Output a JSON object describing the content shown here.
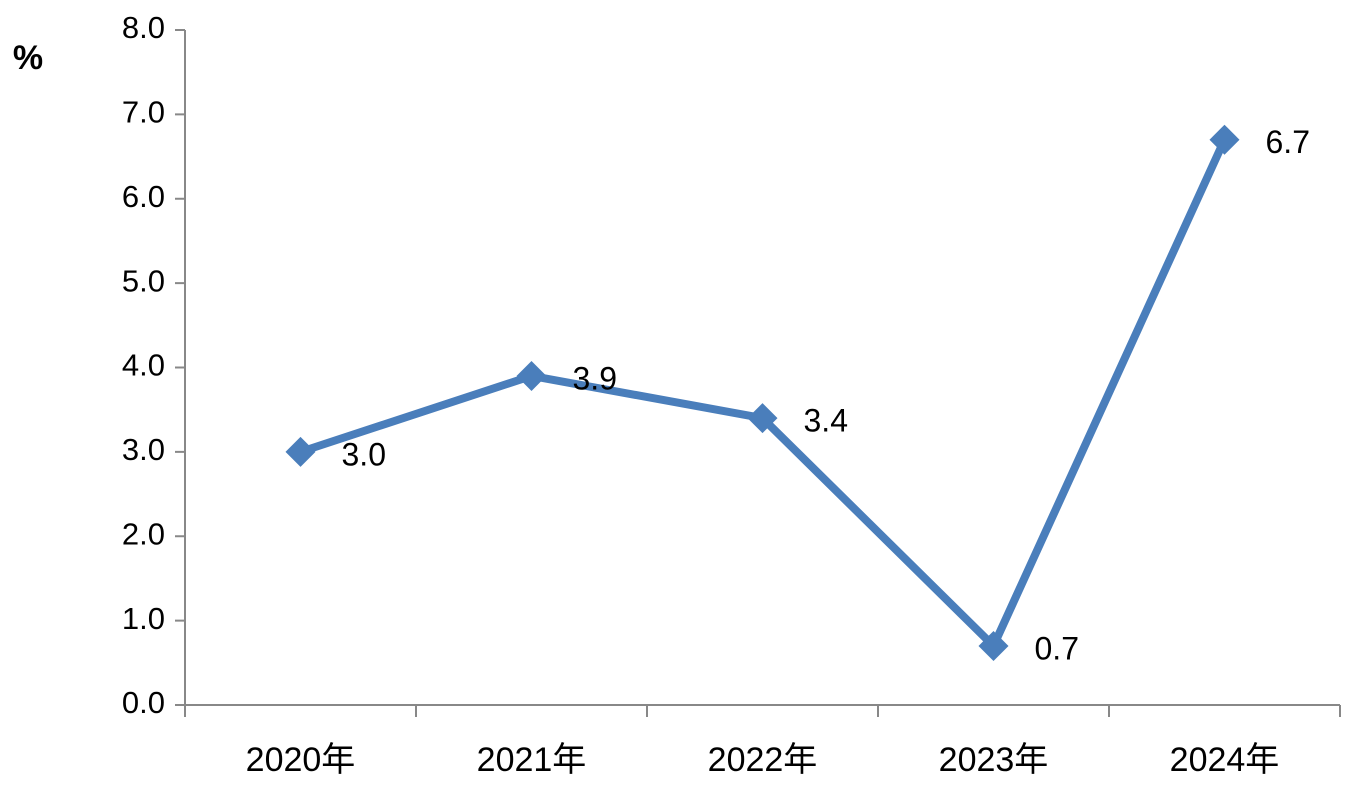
{
  "chart_data": {
    "type": "line",
    "y_label": "%",
    "categories": [
      "2020年",
      "2021年",
      "2022年",
      "2023年",
      "2024年"
    ],
    "series": [
      {
        "name": "",
        "color": "#4a7ebb",
        "values": [
          3.0,
          3.9,
          3.4,
          0.7,
          6.7
        ],
        "value_labels": [
          "3.0",
          "3.9",
          "3.4",
          "0.7",
          "6.7"
        ]
      }
    ],
    "ylim": [
      0,
      8
    ],
    "yticks": [
      {
        "value": 0,
        "label": "0.0"
      },
      {
        "value": 1,
        "label": "1.0"
      },
      {
        "value": 2,
        "label": "2.0"
      },
      {
        "value": 3,
        "label": "3.0"
      },
      {
        "value": 4,
        "label": "4.0"
      },
      {
        "value": 5,
        "label": "5.0"
      },
      {
        "value": 6,
        "label": "6.0"
      },
      {
        "value": 7,
        "label": "7.0"
      },
      {
        "value": 8,
        "label": "8.0"
      }
    ],
    "grid": false
  }
}
